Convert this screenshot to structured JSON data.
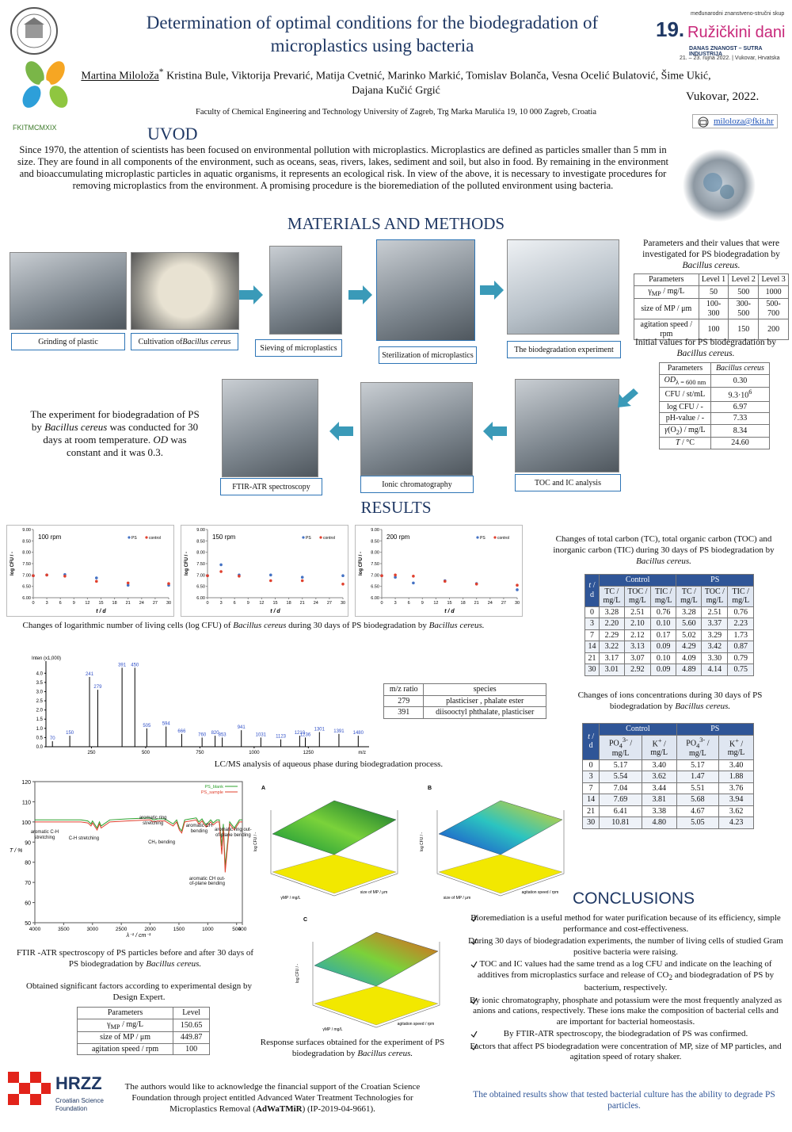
{
  "header": {
    "title": "Determination of optimal conditions for the biodegradation of microplastics using bacteria",
    "authors": [
      {
        "u": "Martina Miloloža"
      },
      {
        "sup": "*"
      },
      " Kristina Bule, Viktorija Prevarić, Matija Cvetnić, Marinko Markić, Tomislav Bolanča, Vesna Ocelić Bulatović, Šime Ukić, Dajana Kučić Grgić"
    ],
    "affiliation": "Faculty of Chemical Engineering and Technology University of Zagreb, Trg Marka Marulića 19, 10 000 Zagreb, Croatia",
    "place_date": "Vukovar, 2022.",
    "email": "miloloza@fkit.hr",
    "logo_text": "FKITMCMXIX",
    "conference": {
      "number": "19.",
      "name": "Ružičkini dani",
      "line1": "međunarodni znanstveno-stručni skup",
      "line2": "DANAS ZNANOST – SUTRA INDUSTRIJA",
      "line3": "21. – 23. rujna 2022. | Vukovar, Hrvatska"
    }
  },
  "intro": {
    "heading": "UVOD",
    "text": "Since 1970, the attention of scientists has been focused on environmental pollution with microplastics. Microplastics are defined as particles smaller than 5 mm in size. They are found in all components of the environment, such as oceans, seas, rivers, lakes, sediment and soil, but also in food. By remaining in the environment and bioaccumulating microplastic particles in aquatic organisms, it represents an ecological risk. In view of the above, it is necessary to investigate procedures for removing microplastics from the environment. A promising procedure is the bioremediation of the polluted environment using bacteria."
  },
  "methods": {
    "heading": "MATERIALS AND METHODS",
    "steps": [
      "Grinding of plastic",
      [
        "Cultivation of ",
        {
          "i": "Bacillus cereus"
        }
      ],
      "Sieving of microplastics",
      "Sterilization of microplastics",
      "The biodegradation experiment",
      "TOC and IC analysis",
      "Ionic chromatography",
      "FTIR-ATR spectroscopy"
    ],
    "experiment_text": [
      "The experiment for biodegradation of PS by ",
      {
        "i": "Bacillus cereus"
      },
      " was conducted for 30 days at room temperature. ",
      {
        "i": "OD"
      },
      " was constant and it was 0.3."
    ],
    "params_caption": [
      "Parameters and their values that were investigated for PS biodegradation by ",
      {
        "i": "Bacillus cereus."
      }
    ],
    "params_table": {
      "header": [
        "Parameters",
        "Level 1",
        "Level 2",
        "Level 3"
      ],
      "rows": [
        [
          [
            "γ",
            {
              "sub": "MP"
            },
            " / mg/L"
          ],
          "50",
          "500",
          "1000"
        ],
        [
          "size of MP / μm",
          "100-300",
          "300-500",
          "500-700"
        ],
        [
          "agitation speed / rpm",
          "100",
          "150",
          "200"
        ]
      ]
    },
    "initial_caption": [
      "Initial values for PS biodegradation by ",
      {
        "i": "Bacillus cereus."
      }
    ],
    "initial_table": {
      "header": [
        "Parameters",
        [
          {
            "i": "Bacillus cereus"
          }
        ]
      ],
      "rows": [
        [
          [
            {
              "i": "OD"
            },
            {
              "sub": "λ = 600 nm"
            }
          ],
          "0.30"
        ],
        [
          "CFU / st/mL",
          [
            "9.3·10",
            {
              "sup": "6"
            }
          ]
        ],
        [
          "log CFU / -",
          "6.97"
        ],
        [
          "pH-value / -",
          "7.33"
        ],
        [
          [
            {
              "i": "γ"
            },
            "(O",
            {
              "sub": "2"
            },
            ") / mg/L"
          ],
          "8.34"
        ],
        [
          [
            {
              "i": "T"
            },
            " / °C"
          ],
          "24.60"
        ]
      ]
    }
  },
  "results": {
    "heading": "RESULTS",
    "logcfu_caption": [
      "Changes of logarithmic number of living cells (log CFU) of ",
      {
        "i": "Bacillus cereus"
      },
      " during 30 days of PS biodegradation by ",
      {
        "i": "Bacillus cereus."
      }
    ],
    "tc_caption": [
      "Changes of total carbon (TC), total organic carbon (TOC) and inorganic carbon (TIC) during 30 days of PS biodegradation by ",
      {
        "i": "Bacillus cereus."
      }
    ],
    "tc_table": {
      "corner": [
        {
          "i": "t"
        },
        " / d"
      ],
      "groups": [
        "Control",
        "PS"
      ],
      "columns": [
        "TC / mg/L",
        "TOC / mg/L",
        "TIC / mg/L",
        "TC / mg/L",
        "TOC / mg/L",
        "TIC / mg/L"
      ],
      "rows": [
        [
          "0",
          "3.28",
          "2.51",
          "0.76",
          "3.28",
          "2.51",
          "0.76"
        ],
        [
          "3",
          "2.20",
          "2.10",
          "0.10",
          "5.60",
          "3.37",
          "2.23"
        ],
        [
          "7",
          "2.29",
          "2.12",
          "0.17",
          "5.02",
          "3.29",
          "1.73"
        ],
        [
          "14",
          "3.22",
          "3.13",
          "0.09",
          "4.29",
          "3.42",
          "0.87"
        ],
        [
          "21",
          "3.17",
          "3.07",
          "0.10",
          "4.09",
          "3.30",
          "0.79"
        ],
        [
          "30",
          "3.01",
          "2.92",
          "0.09",
          "4.89",
          "4.14",
          "0.75"
        ]
      ]
    },
    "ions_caption": [
      "Changes of ions concentrations during 30 days of PS biodegradation by ",
      {
        "i": "Bacillus cereus."
      }
    ],
    "ions_table": {
      "corner": [
        {
          "i": "t"
        },
        " / d"
      ],
      "groups": [
        "Control",
        "PS"
      ],
      "columns": [
        [
          "PO",
          {
            "sub": "4"
          },
          {
            "sup": "3-"
          },
          " / mg/L"
        ],
        [
          "K",
          {
            "sup": "+"
          },
          " / mg/L"
        ],
        [
          "PO",
          {
            "sub": "4"
          },
          {
            "sup": "3-"
          },
          " / mg/L"
        ],
        [
          "K",
          {
            "sup": "+"
          },
          " / mg/L"
        ]
      ],
      "rows": [
        [
          "0",
          "5.17",
          "3.40",
          "5.17",
          "3.40"
        ],
        [
          "3",
          "5.54",
          "3.62",
          "1.47",
          "1.88"
        ],
        [
          "7",
          "7.04",
          "3.44",
          "5.51",
          "3.76"
        ],
        [
          "14",
          "7.69",
          "3.81",
          "5.68",
          "3.94"
        ],
        [
          "21",
          "6.41",
          "3.38",
          "4.67",
          "3.62"
        ],
        [
          "30",
          "10.81",
          "4.80",
          "5.05",
          "4.23"
        ]
      ]
    },
    "lcms_caption": "LC/MS analysis of aqueous phase during biodegradation process.",
    "mz_table": {
      "header": [
        "m/z ratio",
        "species"
      ],
      "rows": [
        [
          "279",
          "plasticiser , phalate ester"
        ],
        [
          "391",
          "diisooctyl phthalate, plasticiser"
        ]
      ]
    },
    "ftir_caption": [
      "FTIR -ATR spectroscopy of PS particles before and after 30 days of PS biodegradation by ",
      {
        "i": "Bacillus cereus."
      }
    ],
    "design_caption": "Obtained significant factors according to experimental design by Design Expert.",
    "design_table": {
      "header": [
        "Parameters",
        "Level"
      ],
      "rows": [
        [
          [
            "γ",
            {
              "sub": "MP"
            },
            " / mg/L"
          ],
          "150.65"
        ],
        [
          "size of MP / μm",
          "449.87"
        ],
        [
          "agitation speed / rpm",
          "100"
        ]
      ]
    },
    "surfaces": [
      {
        "letter": "A",
        "z_label": "log CFU / -",
        "x_label": "γMP / mg/L",
        "y_label": "size of MP / μm"
      },
      {
        "letter": "B",
        "z_label": "log CFU / -",
        "x_label": "size of MP / μm",
        "y_label": "agitation speed / rpm"
      },
      {
        "letter": "C",
        "z_label": "log CFU / -",
        "x_label": "γMP / mg/L",
        "y_label": "agitation speed / rpm"
      }
    ],
    "surfaces_caption": [
      "Response surfaces obtained for the experiment of PS biodegradation by ",
      {
        "i": "Bacillus cereus."
      }
    ]
  },
  "chart_data": [
    {
      "type": "scatter",
      "title": "100 rpm",
      "x_label": "t / d",
      "y_label": "log CFU / -",
      "x": [
        0,
        3,
        7,
        14,
        21,
        30
      ],
      "series": [
        {
          "name": "PS",
          "color": "#4472c4",
          "values": [
            6.97,
            7.0,
            7.02,
            6.87,
            6.55,
            6.55
          ]
        },
        {
          "name": "control",
          "color": "#e0402e",
          "values": [
            6.97,
            7.0,
            6.95,
            6.72,
            6.65,
            6.62
          ]
        }
      ],
      "xlim": [
        0,
        30
      ],
      "xticks": [
        0,
        3,
        6,
        9,
        12,
        15,
        18,
        21,
        24,
        27,
        30
      ],
      "ylim": [
        6,
        9
      ],
      "yticks": [
        {
          "value": 6,
          "label": "6.00"
        },
        {
          "value": 6.5,
          "label": "6.50"
        },
        {
          "value": 7,
          "label": "7.00"
        },
        {
          "value": 7.5,
          "label": "7.50"
        },
        {
          "value": 8,
          "label": "8.00"
        },
        {
          "value": 8.5,
          "label": "8.50"
        },
        {
          "value": 9,
          "label": "9.00"
        }
      ]
    },
    {
      "type": "scatter",
      "title": "150 rpm",
      "x_label": "t / d",
      "y_label": "log CFU / -",
      "x": [
        0,
        3,
        7,
        14,
        21,
        30
      ],
      "series": [
        {
          "name": "PS",
          "color": "#4472c4",
          "values": [
            6.97,
            7.45,
            7.0,
            7.0,
            6.9,
            6.97
          ]
        },
        {
          "name": "control",
          "color": "#e0402e",
          "values": [
            6.97,
            7.15,
            6.95,
            6.75,
            6.75,
            6.6
          ]
        }
      ],
      "xlim": [
        0,
        30
      ],
      "xticks": [
        0,
        3,
        6,
        9,
        12,
        15,
        18,
        21,
        24,
        27,
        30
      ],
      "ylim": [
        6,
        9
      ],
      "yticks": [
        {
          "value": 6,
          "label": "6.00"
        },
        {
          "value": 6.5,
          "label": "6.50"
        },
        {
          "value": 7,
          "label": "7.00"
        },
        {
          "value": 7.5,
          "label": "7.50"
        },
        {
          "value": 8,
          "label": "8.00"
        },
        {
          "value": 8.5,
          "label": "8.50"
        },
        {
          "value": 9,
          "label": "9.00"
        }
      ]
    },
    {
      "type": "scatter",
      "title": "200 rpm",
      "x_label": "t / d",
      "y_label": "log CFU / -",
      "x": [
        0,
        3,
        7,
        14,
        21,
        30
      ],
      "series": [
        {
          "name": "PS",
          "color": "#4472c4",
          "values": [
            6.97,
            6.9,
            6.65,
            6.75,
            6.62,
            6.35
          ]
        },
        {
          "name": "control",
          "color": "#e0402e",
          "values": [
            6.97,
            7.0,
            6.95,
            6.72,
            6.6,
            6.55
          ]
        }
      ],
      "xlim": [
        0,
        30
      ],
      "xticks": [
        0,
        3,
        6,
        9,
        12,
        15,
        18,
        21,
        24,
        27,
        30
      ],
      "ylim": [
        6,
        9
      ],
      "yticks": [
        {
          "value": 6,
          "label": "6.00"
        },
        {
          "value": 6.5,
          "label": "6.50"
        },
        {
          "value": 7,
          "label": "7.00"
        },
        {
          "value": 7.5,
          "label": "7.50"
        },
        {
          "value": 8,
          "label": "8.00"
        },
        {
          "value": 8.5,
          "label": "8.50"
        },
        {
          "value": 9,
          "label": "9.00"
        }
      ]
    },
    {
      "type": "spectrum",
      "title": "Inten (x1,000)",
      "x_label": "m/z",
      "color": "#000000",
      "label_color": "#3050c8",
      "x": [
        70,
        150,
        241,
        279,
        391,
        450,
        505,
        594,
        666,
        760,
        820,
        853,
        941,
        1031,
        1123,
        1210,
        1236,
        1301,
        1391,
        1480
      ],
      "values": [
        0.3,
        0.6,
        3.8,
        3.1,
        4.3,
        4.3,
        1.0,
        1.1,
        0.7,
        0.5,
        0.6,
        0.5,
        0.9,
        0.5,
        0.4,
        0.6,
        0.5,
        0.8,
        0.7,
        0.6
      ],
      "xlim": [
        40,
        1530
      ],
      "xticks": [
        250,
        500,
        750,
        1000,
        1250
      ],
      "ylim": [
        0,
        4.4
      ],
      "yticks": [
        {
          "value": 0,
          "label": "0.0"
        },
        0.5,
        {
          "value": 1,
          "label": "1.0"
        },
        1.5,
        {
          "value": 2,
          "label": "2.0"
        },
        2.5,
        {
          "value": 3,
          "label": "3.0"
        },
        3.5,
        {
          "value": 4,
          "label": "4.0"
        }
      ]
    },
    {
      "type": "line",
      "y_label": "T / %",
      "x_label": "λ⁻¹ / cm⁻¹",
      "x": [
        4000,
        3600,
        3200,
        3082,
        3060,
        3026,
        3000,
        2920,
        2880,
        2850,
        2700,
        2400,
        2000,
        1943,
        1870,
        1800,
        1745,
        1601,
        1540,
        1493,
        1452,
        1400,
        1300,
        1200,
        1155,
        1100,
        1069,
        1028,
        950,
        906,
        842,
        800,
        757,
        730,
        698,
        620,
        540,
        450,
        400
      ],
      "series": [
        {
          "name": "PS_blank",
          "color": "#2ca02c",
          "values": [
            101,
            101,
            101,
            100.5,
            100,
            99,
            100.5,
            97,
            100,
            98,
            101,
            101.5,
            102,
            101,
            101.5,
            101.5,
            101.5,
            99,
            101,
            97,
            95.5,
            101,
            101.5,
            102,
            100,
            101.5,
            100,
            98.5,
            101,
            99.5,
            101,
            101,
            88,
            99,
            78,
            100,
            97,
            101,
            101
          ]
        },
        {
          "name": "PS_sample",
          "color": "#e0402e",
          "values": [
            100,
            100,
            100,
            99.5,
            99,
            98,
            99.5,
            96,
            99,
            97,
            100,
            100.5,
            101,
            100,
            100.5,
            100.5,
            100.5,
            98,
            100,
            96,
            94.5,
            100,
            100.5,
            101,
            99,
            100.5,
            99,
            97.5,
            100,
            98.5,
            100,
            100,
            84,
            97,
            75,
            99,
            96,
            100,
            100
          ]
        }
      ],
      "annotations": [
        "aromatic C-H stretching",
        "C-H stretching",
        "aromatic ring stretching",
        "CH₂ bending",
        "aromatic CH bending",
        "aromatic ring out-of-plane bending",
        "aromatic CH out-of-plane bending"
      ],
      "xlim": [
        4000,
        400
      ],
      "xticks": [
        4000,
        3500,
        3000,
        2500,
        2000,
        1500,
        1000,
        500,
        400
      ],
      "ylim": [
        50,
        120
      ],
      "yticks": [
        50,
        60,
        70,
        80,
        90,
        100,
        110,
        120
      ]
    }
  ],
  "conclusions": {
    "heading": "CONCLUSIONS",
    "items": [
      "Bioremediation is a useful method for water purification because of its efficiency, simple performance and cost-effectiveness.",
      "During 30 days of biodegradation experiments, the number of living cells of studied Gram positive bacteria were raising.",
      [
        "TOC and IC values had the same trend as a log CFU and indicate on the leaching of additives from microplastics surface and release of CO",
        {
          "sub": "2"
        },
        " and biodegradation of PS by bacterium, respectively."
      ],
      "By ionic chromatography, phosphate and potassium were the most frequently analyzed as anions and cations, respectively. These ions make the composition of bacterial cells and are important for bacterial homeostasis.",
      "By FTIR-ATR spectroscopy, the biodegradation of PS  was confirmed.",
      "Factors that affect PS biodegradation were concentration of MP, size of MP particles, and agitation speed of rotary shaker."
    ],
    "final": "The obtained results show that tested bacterial culture has the ability to degrade PS particles."
  },
  "footer": {
    "logo": "HRZZ",
    "logo_sub1": "Croatian Science",
    "logo_sub2": "Foundation",
    "acknowledgment": [
      "The authors would like to acknowledge the financial support of the Croatian Science Foundation through project entitled Advanced Water Treatment Technologies for Microplastics Removal (",
      {
        "b": "AdWaTMiR"
      },
      ") (IP-2019-04-9661)."
    ]
  }
}
